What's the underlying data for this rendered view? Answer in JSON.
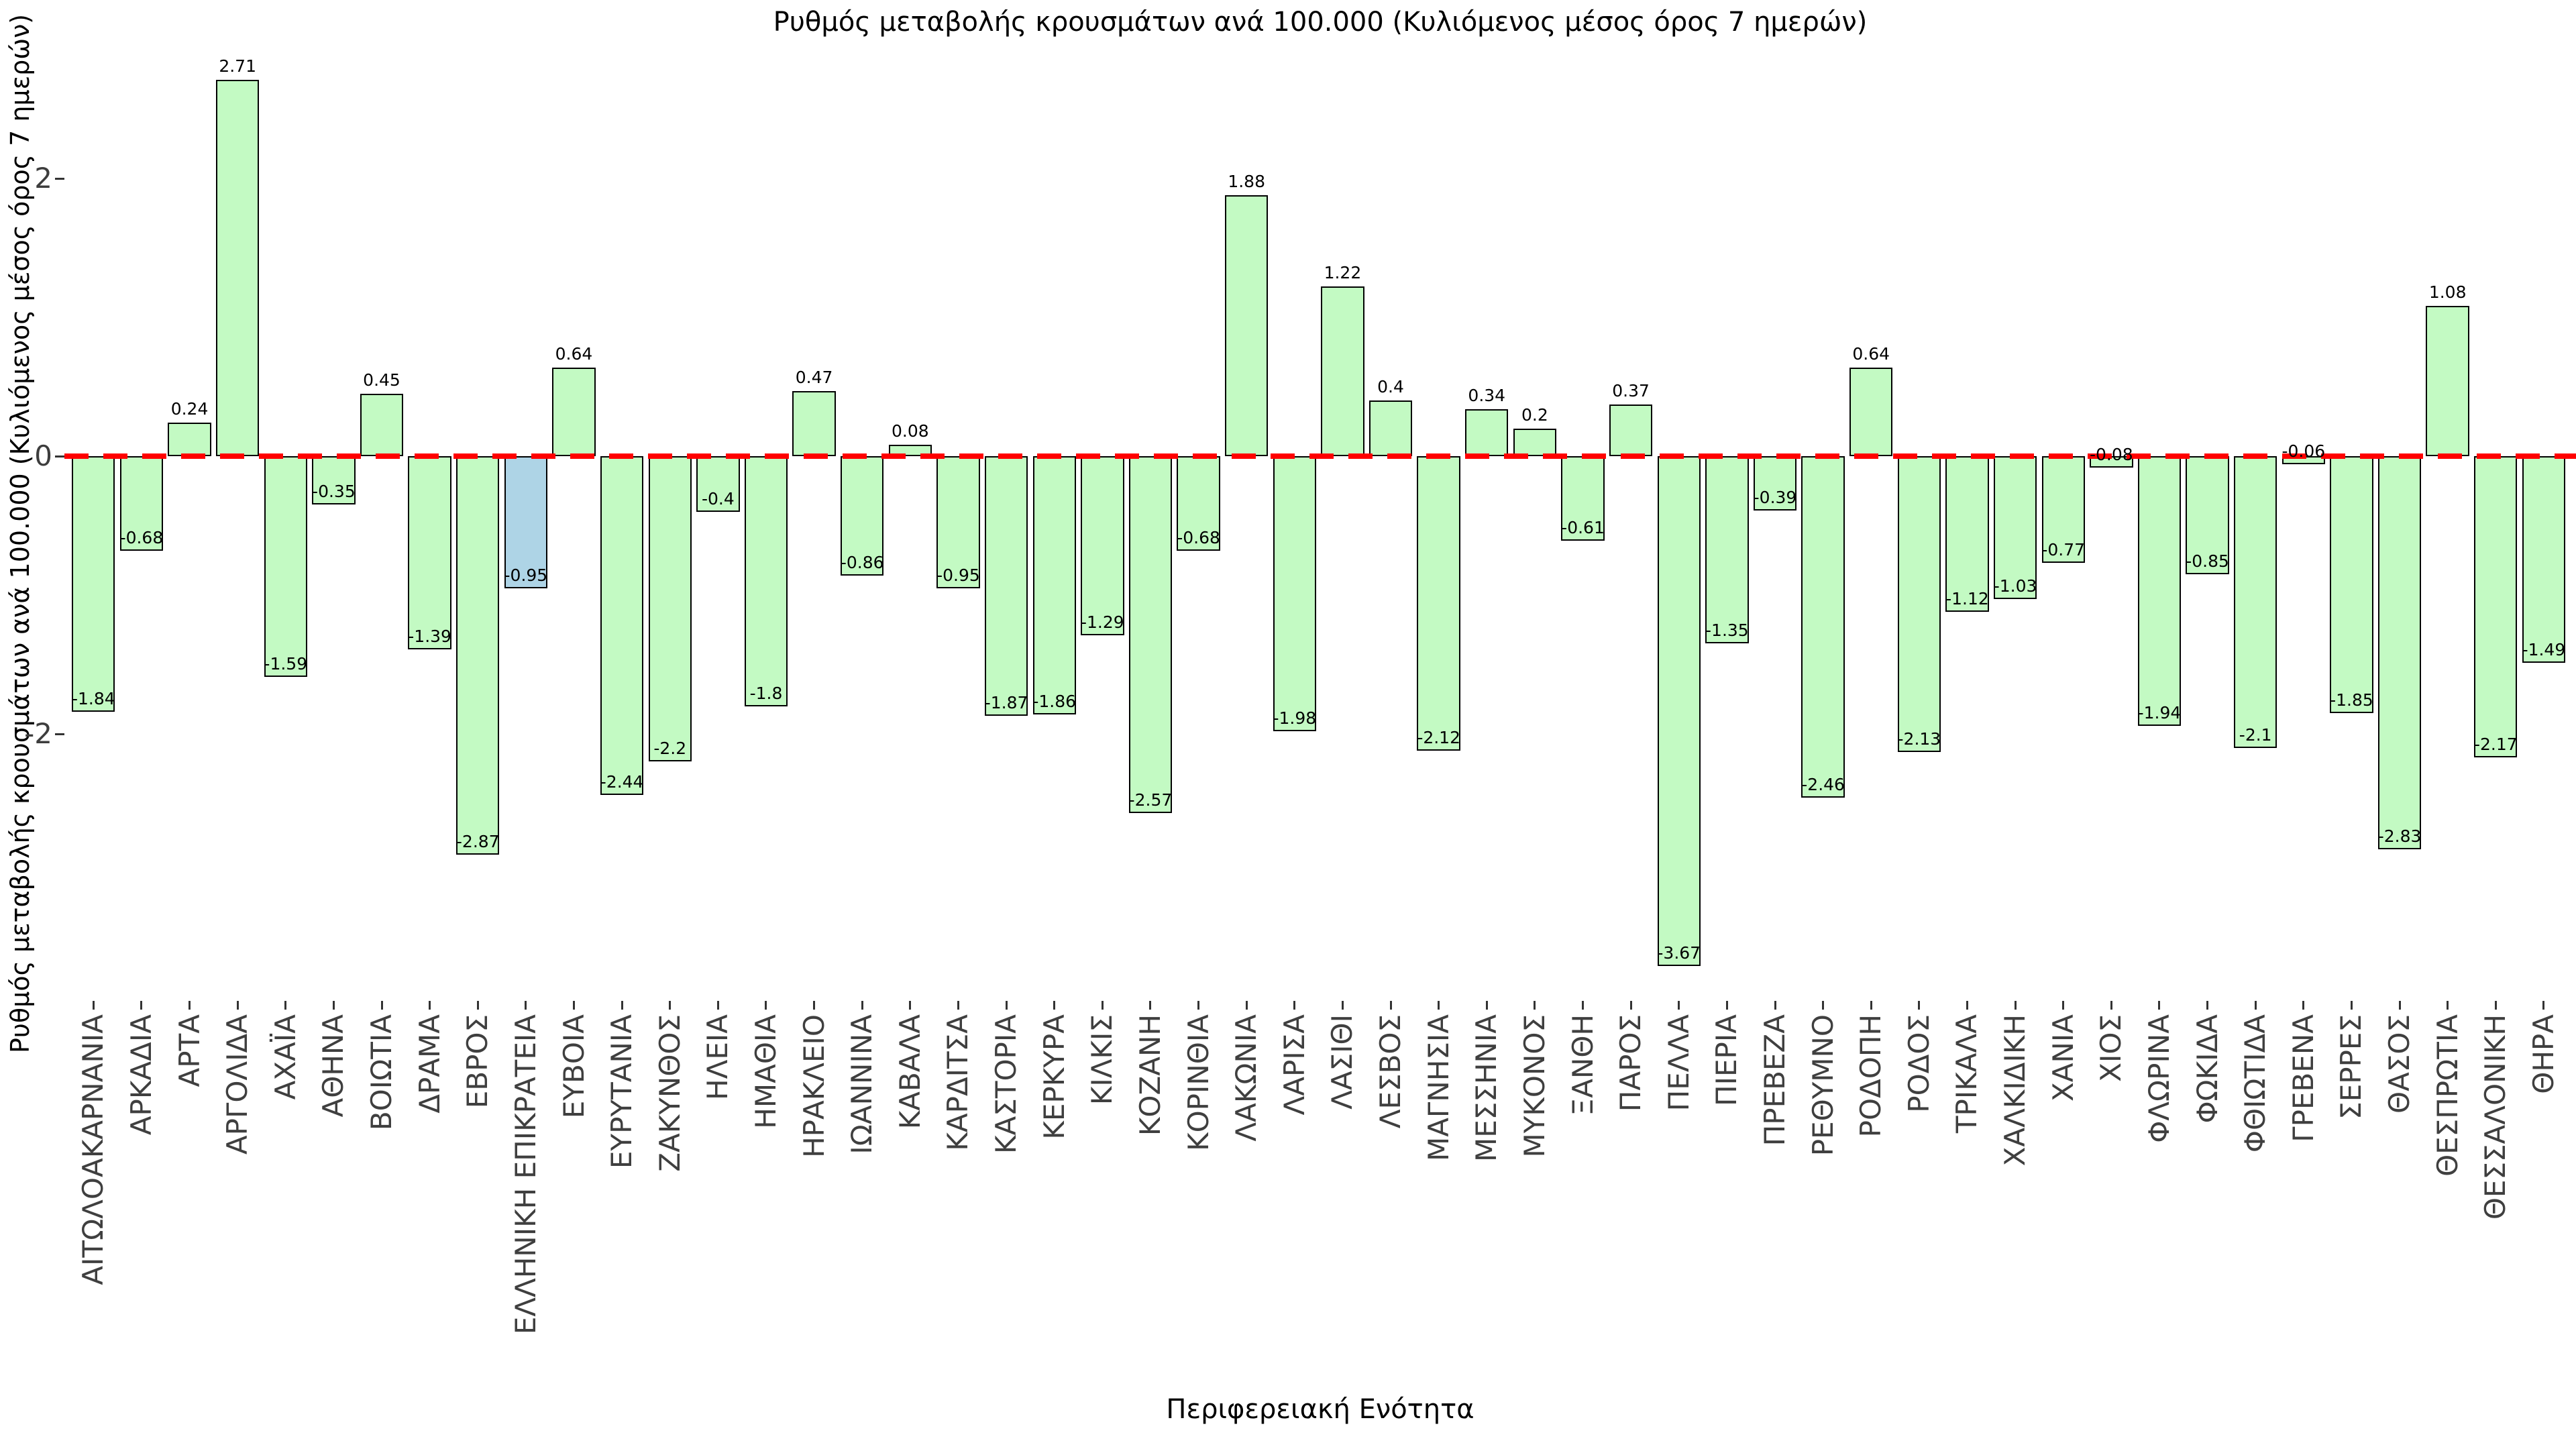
{
  "chart_data": {
    "type": "bar",
    "title": "Ρυθμός μεταβολής κρουσμάτων ανά 100.000 (Κυλιόμενος μέσος όρος 7 ημερών)",
    "xlabel": "Περιφερειακή Ενότητα",
    "ylabel": "Ρυθμός μεταβολής κρουσμάτων ανά 100.000 (Κυλιόμενος μέσος όρος 7 ημερών)",
    "categories": [
      "ΑΙΤΩΛΟΑΚΑΡΝΑΝΙΑ",
      "ΑΡΚΑΔΙΑ",
      "ΑΡΤΑ",
      "ΑΡΓΟΛΙΔΑ",
      "ΑΧΑΪΑ",
      "ΑΘΗΝΑ",
      "ΒΟΙΩΤΙΑ",
      "ΔΡΑΜΑ",
      "ΕΒΡΟΣ",
      "ΕΛΛΗΝΙΚΗ ΕΠΙΚΡΑΤΕΙΑ",
      "ΕΥΒΟΙΑ",
      "ΕΥΡΥΤΑΝΙΑ",
      "ΖΑΚΥΝΘΟΣ",
      "ΗΛΕΙΑ",
      "ΗΜΑΘΙΑ",
      "ΗΡΑΚΛΕΙΟ",
      "ΙΩΑΝΝΙΝΑ",
      "ΚΑΒΑΛΑ",
      "ΚΑΡΔΙΤΣΑ",
      "ΚΑΣΤΟΡΙΑ",
      "ΚΕΡΚΥΡΑ",
      "ΚΙΛΚΙΣ",
      "ΚΟΖΑΝΗ",
      "ΚΟΡΙΝΘΙΑ",
      "ΛΑΚΩΝΙΑ",
      "ΛΑΡΙΣΑ",
      "ΛΑΣΙΘΙ",
      "ΛΕΣΒΟΣ",
      "ΜΑΓΝΗΣΙΑ",
      "ΜΕΣΣΗΝΙΑ",
      "ΜΥΚΟΝΟΣ",
      "ΞΑΝΘΗ",
      "ΠΑΡΟΣ",
      "ΠΕΛΛΑ",
      "ΠΙΕΡΙΑ",
      "ΠΡΕΒΕΖΑ",
      "ΡΕΘΥΜΝΟ",
      "ΡΟΔΟΠΗ",
      "ΡΟΔΟΣ",
      "ΤΡΙΚΑΛΑ",
      "ΧΑΛΚΙΔΙΚΗ",
      "ΧΑΝΙΑ",
      "ΧΙΟΣ",
      "ΦΛΩΡΙΝΑ",
      "ΦΩΚΙΔΑ",
      "ΦΘΙΩΤΙΔΑ",
      "ΓΡΕΒΕΝΑ",
      "ΣΕΡΡΕΣ",
      "ΘΑΣΟΣ",
      "ΘΕΣΠΡΩΤΙΑ",
      "ΘΕΣΣΑΛΟΝΙΚΗ",
      "ΘΗΡΑ"
    ],
    "values": [
      -1.84,
      -0.68,
      0.24,
      2.71,
      -1.59,
      -0.35,
      0.45,
      -1.39,
      -2.87,
      -0.95,
      0.64,
      -2.44,
      -2.2,
      -0.4,
      -1.8,
      0.47,
      -0.86,
      0.08,
      -0.95,
      -1.87,
      -1.86,
      -1.29,
      -2.57,
      -0.68,
      1.88,
      -1.98,
      1.22,
      0.4,
      -2.12,
      0.34,
      0.2,
      -0.61,
      0.37,
      -3.67,
      -1.35,
      -0.39,
      -2.46,
      0.64,
      -2.13,
      -1.12,
      -1.03,
      -0.77,
      -0.08,
      -1.94,
      -0.85,
      -2.1,
      -0.06,
      -1.85,
      -2.83,
      1.08,
      -2.17,
      -1.49
    ],
    "bar_labels": [
      "-1.84",
      "-0.68",
      "0.24",
      "2.71",
      "-1.59",
      "-0.35",
      "0.45",
      "-1.39",
      "-2.87",
      "-0.95",
      "0.64",
      "-2.44",
      "-2.2",
      "-0.4",
      "-1.8",
      "0.47",
      "-0.86",
      "0.08",
      "-0.95",
      "-1.87",
      "-1.86",
      "-1.29",
      "-2.57",
      "-0.68",
      "1.88",
      "-1.98",
      "1.22",
      "0.4",
      "-2.12",
      "0.34",
      "0.2",
      "-0.61",
      "0.37",
      "-3.67",
      "-1.35",
      "-0.39",
      "-2.46",
      "0.64",
      "-2.13",
      "-1.12",
      "-1.03",
      "-0.77",
      "-0.08",
      "-1.94",
      "-0.85",
      "-2.1",
      "-0.06",
      "-1.85",
      "-2.83",
      "1.08",
      "-2.17",
      "-1.49"
    ],
    "highlight_category": "ΕΛΛΗΝΙΚΗ ΕΠΙΚΡΑΤΕΙΑ",
    "yticks": [
      2,
      0,
      -2
    ],
    "zero_line": {
      "value": 0,
      "style": "dashed"
    },
    "grid": false,
    "legend": null,
    "colors": {
      "bar_fill": "#c3fac3",
      "bar_edge": "#000000",
      "highlight_fill": "#aed4e6",
      "zero_line": "#ff0000",
      "tick_label": "#3d3d3d",
      "value_label": "#000000",
      "background": "#ffffff"
    }
  }
}
